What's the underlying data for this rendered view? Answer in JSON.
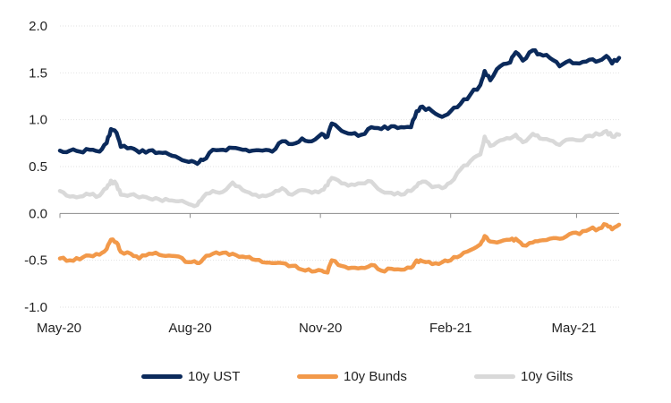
{
  "chart_data": {
    "type": "line",
    "x_start": "2020-05-01",
    "x_end": "2021-05-31",
    "x_ticks": [
      {
        "date": "2020-05-01",
        "label": "May-20"
      },
      {
        "date": "2020-08-01",
        "label": "Aug-20"
      },
      {
        "date": "2020-11-01",
        "label": "Nov-20"
      },
      {
        "date": "2021-02-01",
        "label": "Feb-21"
      },
      {
        "date": "2021-05-01",
        "label": "May-21"
      }
    ],
    "ylim": [
      -1.0,
      2.0
    ],
    "y_ticks": [
      "2.0",
      "1.5",
      "1.0",
      "0.5",
      "0.0",
      "-0.5",
      "-1.0"
    ],
    "grid": true,
    "legend_position": "bottom",
    "series": [
      {
        "name": "10y UST",
        "color": "#0b2a5b",
        "points": [
          [
            "2020-05-01",
            0.67
          ],
          [
            "2020-05-08",
            0.67
          ],
          [
            "2020-05-15",
            0.66
          ],
          [
            "2020-05-22",
            0.68
          ],
          [
            "2020-05-29",
            0.66
          ],
          [
            "2020-06-03",
            0.75
          ],
          [
            "2020-06-06",
            0.9
          ],
          [
            "2020-06-10",
            0.86
          ],
          [
            "2020-06-13",
            0.71
          ],
          [
            "2020-06-20",
            0.7
          ],
          [
            "2020-06-26",
            0.65
          ],
          [
            "2020-07-03",
            0.67
          ],
          [
            "2020-07-10",
            0.65
          ],
          [
            "2020-07-17",
            0.63
          ],
          [
            "2020-07-24",
            0.59
          ],
          [
            "2020-07-31",
            0.55
          ],
          [
            "2020-08-06",
            0.53
          ],
          [
            "2020-08-10",
            0.57
          ],
          [
            "2020-08-17",
            0.68
          ],
          [
            "2020-08-24",
            0.68
          ],
          [
            "2020-08-31",
            0.7
          ],
          [
            "2020-09-07",
            0.68
          ],
          [
            "2020-09-14",
            0.67
          ],
          [
            "2020-09-21",
            0.67
          ],
          [
            "2020-09-28",
            0.66
          ],
          [
            "2020-10-05",
            0.77
          ],
          [
            "2020-10-12",
            0.74
          ],
          [
            "2020-10-19",
            0.8
          ],
          [
            "2020-10-26",
            0.77
          ],
          [
            "2020-11-02",
            0.85
          ],
          [
            "2020-11-06",
            0.82
          ],
          [
            "2020-11-09",
            0.96
          ],
          [
            "2020-11-16",
            0.88
          ],
          [
            "2020-11-23",
            0.85
          ],
          [
            "2020-11-30",
            0.84
          ],
          [
            "2020-12-07",
            0.92
          ],
          [
            "2020-12-14",
            0.9
          ],
          [
            "2020-12-21",
            0.93
          ],
          [
            "2020-12-28",
            0.92
          ],
          [
            "2021-01-04",
            0.92
          ],
          [
            "2021-01-08",
            1.09
          ],
          [
            "2021-01-12",
            1.14
          ],
          [
            "2021-01-19",
            1.09
          ],
          [
            "2021-01-26",
            1.03
          ],
          [
            "2021-02-01",
            1.09
          ],
          [
            "2021-02-08",
            1.17
          ],
          [
            "2021-02-15",
            1.27
          ],
          [
            "2021-02-22",
            1.37
          ],
          [
            "2021-02-25",
            1.52
          ],
          [
            "2021-03-01",
            1.42
          ],
          [
            "2021-03-08",
            1.57
          ],
          [
            "2021-03-15",
            1.61
          ],
          [
            "2021-03-19",
            1.72
          ],
          [
            "2021-03-24",
            1.63
          ],
          [
            "2021-03-31",
            1.74
          ],
          [
            "2021-04-05",
            1.7
          ],
          [
            "2021-04-12",
            1.66
          ],
          [
            "2021-04-19",
            1.57
          ],
          [
            "2021-04-26",
            1.63
          ],
          [
            "2021-05-03",
            1.6
          ],
          [
            "2021-05-10",
            1.64
          ],
          [
            "2021-05-17",
            1.63
          ],
          [
            "2021-05-22",
            1.68
          ],
          [
            "2021-05-26",
            1.6
          ],
          [
            "2021-05-31",
            1.66
          ]
        ]
      },
      {
        "name": "10y Bunds",
        "color": "#f2994a",
        "points": [
          [
            "2020-05-01",
            -0.48
          ],
          [
            "2020-05-08",
            -0.5
          ],
          [
            "2020-05-15",
            -0.49
          ],
          [
            "2020-05-22",
            -0.45
          ],
          [
            "2020-05-29",
            -0.44
          ],
          [
            "2020-06-03",
            -0.38
          ],
          [
            "2020-06-06",
            -0.28
          ],
          [
            "2020-06-10",
            -0.31
          ],
          [
            "2020-06-13",
            -0.41
          ],
          [
            "2020-06-20",
            -0.43
          ],
          [
            "2020-06-26",
            -0.48
          ],
          [
            "2020-07-03",
            -0.43
          ],
          [
            "2020-07-10",
            -0.44
          ],
          [
            "2020-07-17",
            -0.45
          ],
          [
            "2020-07-24",
            -0.46
          ],
          [
            "2020-07-31",
            -0.52
          ],
          [
            "2020-08-06",
            -0.53
          ],
          [
            "2020-08-10",
            -0.49
          ],
          [
            "2020-08-17",
            -0.43
          ],
          [
            "2020-08-24",
            -0.42
          ],
          [
            "2020-08-31",
            -0.43
          ],
          [
            "2020-09-07",
            -0.46
          ],
          [
            "2020-09-14",
            -0.49
          ],
          [
            "2020-09-21",
            -0.52
          ],
          [
            "2020-09-28",
            -0.53
          ],
          [
            "2020-10-05",
            -0.53
          ],
          [
            "2020-10-12",
            -0.56
          ],
          [
            "2020-10-19",
            -0.6
          ],
          [
            "2020-10-26",
            -0.62
          ],
          [
            "2020-11-02",
            -0.61
          ],
          [
            "2020-11-06",
            -0.63
          ],
          [
            "2020-11-09",
            -0.5
          ],
          [
            "2020-11-16",
            -0.56
          ],
          [
            "2020-11-23",
            -0.58
          ],
          [
            "2020-11-30",
            -0.58
          ],
          [
            "2020-12-07",
            -0.55
          ],
          [
            "2020-12-14",
            -0.61
          ],
          [
            "2020-12-21",
            -0.59
          ],
          [
            "2020-12-28",
            -0.6
          ],
          [
            "2021-01-04",
            -0.58
          ],
          [
            "2021-01-08",
            -0.5
          ],
          [
            "2021-01-12",
            -0.51
          ],
          [
            "2021-01-19",
            -0.54
          ],
          [
            "2021-01-26",
            -0.52
          ],
          [
            "2021-02-01",
            -0.5
          ],
          [
            "2021-02-08",
            -0.45
          ],
          [
            "2021-02-15",
            -0.39
          ],
          [
            "2021-02-22",
            -0.33
          ],
          [
            "2021-02-25",
            -0.24
          ],
          [
            "2021-03-01",
            -0.3
          ],
          [
            "2021-03-08",
            -0.3
          ],
          [
            "2021-03-15",
            -0.28
          ],
          [
            "2021-03-19",
            -0.27
          ],
          [
            "2021-03-24",
            -0.34
          ],
          [
            "2021-03-31",
            -0.31
          ],
          [
            "2021-04-05",
            -0.29
          ],
          [
            "2021-04-12",
            -0.27
          ],
          [
            "2021-04-19",
            -0.27
          ],
          [
            "2021-04-26",
            -0.22
          ],
          [
            "2021-05-03",
            -0.22
          ],
          [
            "2021-05-10",
            -0.17
          ],
          [
            "2021-05-17",
            -0.16
          ],
          [
            "2021-05-22",
            -0.12
          ],
          [
            "2021-05-26",
            -0.17
          ],
          [
            "2021-05-31",
            -0.12
          ]
        ]
      },
      {
        "name": "10y Gilts",
        "color": "#d9d9d9",
        "points": [
          [
            "2020-05-01",
            0.24
          ],
          [
            "2020-05-08",
            0.18
          ],
          [
            "2020-05-15",
            0.18
          ],
          [
            "2020-05-22",
            0.2
          ],
          [
            "2020-05-29",
            0.19
          ],
          [
            "2020-06-03",
            0.27
          ],
          [
            "2020-06-06",
            0.35
          ],
          [
            "2020-06-10",
            0.31
          ],
          [
            "2020-06-13",
            0.2
          ],
          [
            "2020-06-20",
            0.2
          ],
          [
            "2020-06-26",
            0.17
          ],
          [
            "2020-07-03",
            0.16
          ],
          [
            "2020-07-10",
            0.15
          ],
          [
            "2020-07-17",
            0.14
          ],
          [
            "2020-07-24",
            0.13
          ],
          [
            "2020-07-31",
            0.1
          ],
          [
            "2020-08-06",
            0.09
          ],
          [
            "2020-08-10",
            0.17
          ],
          [
            "2020-08-17",
            0.24
          ],
          [
            "2020-08-24",
            0.23
          ],
          [
            "2020-08-31",
            0.33
          ],
          [
            "2020-09-07",
            0.25
          ],
          [
            "2020-09-14",
            0.2
          ],
          [
            "2020-09-21",
            0.19
          ],
          [
            "2020-09-28",
            0.21
          ],
          [
            "2020-10-05",
            0.27
          ],
          [
            "2020-10-12",
            0.2
          ],
          [
            "2020-10-19",
            0.25
          ],
          [
            "2020-10-26",
            0.22
          ],
          [
            "2020-11-02",
            0.25
          ],
          [
            "2020-11-06",
            0.3
          ],
          [
            "2020-11-09",
            0.38
          ],
          [
            "2020-11-16",
            0.32
          ],
          [
            "2020-11-23",
            0.31
          ],
          [
            "2020-11-30",
            0.32
          ],
          [
            "2020-12-07",
            0.34
          ],
          [
            "2020-12-14",
            0.24
          ],
          [
            "2020-12-21",
            0.22
          ],
          [
            "2020-12-28",
            0.2
          ],
          [
            "2021-01-04",
            0.24
          ],
          [
            "2021-01-08",
            0.29
          ],
          [
            "2021-01-12",
            0.34
          ],
          [
            "2021-01-19",
            0.28
          ],
          [
            "2021-01-26",
            0.27
          ],
          [
            "2021-02-01",
            0.33
          ],
          [
            "2021-02-08",
            0.47
          ],
          [
            "2021-02-15",
            0.56
          ],
          [
            "2021-02-22",
            0.63
          ],
          [
            "2021-02-25",
            0.82
          ],
          [
            "2021-03-01",
            0.72
          ],
          [
            "2021-03-08",
            0.78
          ],
          [
            "2021-03-15",
            0.8
          ],
          [
            "2021-03-19",
            0.84
          ],
          [
            "2021-03-24",
            0.76
          ],
          [
            "2021-03-31",
            0.85
          ],
          [
            "2021-04-05",
            0.8
          ],
          [
            "2021-04-12",
            0.78
          ],
          [
            "2021-04-19",
            0.73
          ],
          [
            "2021-04-26",
            0.79
          ],
          [
            "2021-05-03",
            0.78
          ],
          [
            "2021-05-10",
            0.83
          ],
          [
            "2021-05-17",
            0.84
          ],
          [
            "2021-05-22",
            0.88
          ],
          [
            "2021-05-26",
            0.82
          ],
          [
            "2021-05-31",
            0.84
          ]
        ]
      }
    ]
  }
}
